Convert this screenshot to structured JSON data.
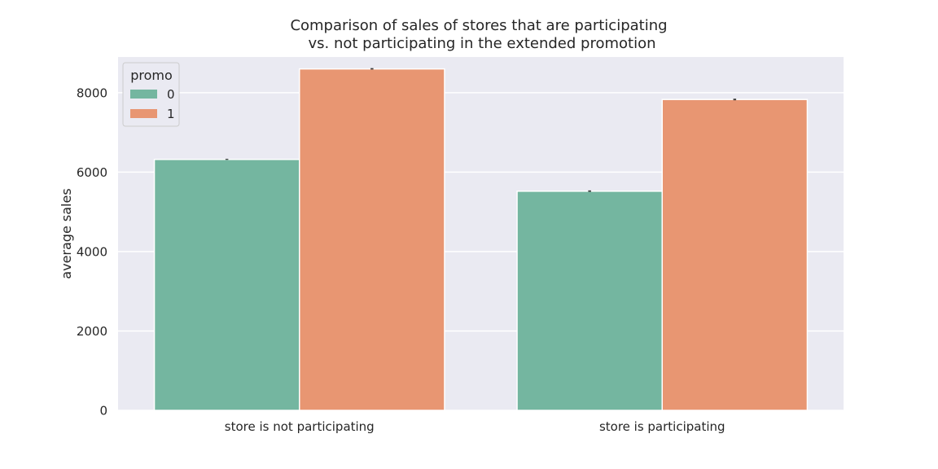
{
  "chart_data": {
    "type": "bar",
    "title_lines": [
      "Comparison of sales of stores that are participating",
      "vs. not participating in the extended promotion"
    ],
    "xlabel": "",
    "ylabel": "average sales",
    "categories": [
      "store is not participating",
      "store is participating"
    ],
    "series": [
      {
        "name": "0",
        "values": [
          6320,
          5520
        ],
        "color": "#74b6a0"
      },
      {
        "name": "1",
        "values": [
          8600,
          7830
        ],
        "color": "#e89672"
      }
    ],
    "error_bars": [
      [
        6310,
        6335
      ],
      [
        8585,
        8620
      ],
      [
        5505,
        5540
      ],
      [
        7810,
        7850
      ]
    ],
    "ylim": [
      0,
      8900
    ],
    "yticks": [
      0,
      2000,
      4000,
      6000,
      8000
    ],
    "legend": {
      "title": "promo",
      "placement": "top-left"
    },
    "grid": true,
    "background": "#eaeaf2",
    "grid_color": "#ffffff"
  }
}
